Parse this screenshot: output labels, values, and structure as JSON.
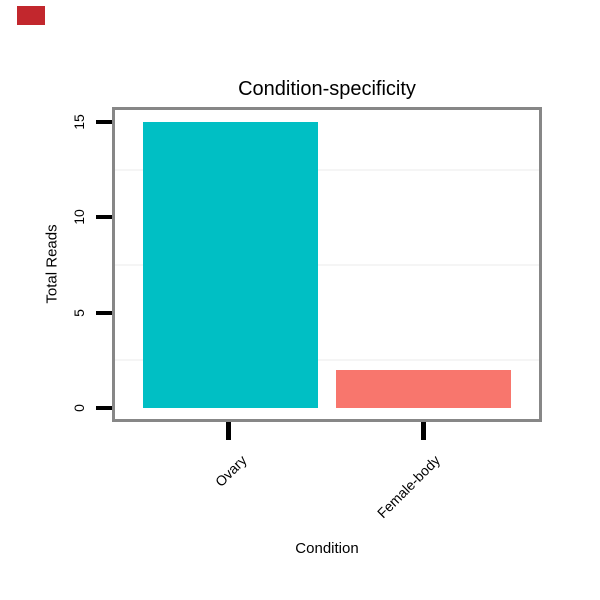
{
  "chart_data": {
    "type": "bar",
    "title": "Condition-specificity",
    "xlabel": "Condition",
    "ylabel": "Total Reads",
    "categories": [
      "Ovary",
      "Female-body"
    ],
    "values": [
      15,
      2
    ],
    "bar_colors": [
      "#00BFC4",
      "#F8766D"
    ],
    "yticks": [
      0,
      5,
      10,
      15
    ],
    "ylim": [
      -0.6,
      15.8
    ],
    "minor_gridlines": [
      2.5,
      7.5,
      12.5
    ],
    "grid": "minor-horizontal-only",
    "legend_position": "none",
    "panel_border_color": "#878787",
    "tick_color": "#000000",
    "minor_grid_color": "#f5f5f5"
  },
  "marker": {
    "color": "#C2272D"
  }
}
